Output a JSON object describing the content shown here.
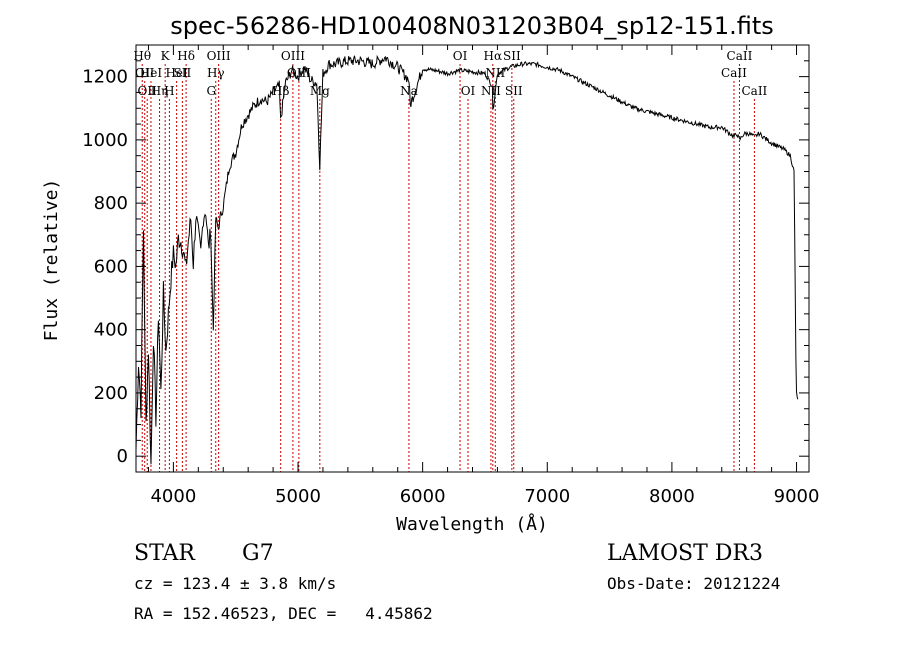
{
  "chart_data": {
    "type": "line",
    "title": "spec-56286-HD100408N031203B04_sp12-151.fits",
    "xlabel": "Wavelength (Å)",
    "ylabel": "Flux (relative)",
    "xlim": [
      3700,
      9100
    ],
    "ylim": [
      -50,
      1300
    ],
    "x_ticks": [
      4000,
      5000,
      6000,
      7000,
      8000,
      9000
    ],
    "y_ticks": [
      0,
      200,
      400,
      600,
      800,
      1000,
      1200
    ],
    "grid": false,
    "series": [
      {
        "name": "flux",
        "x": [
          3700,
          3720,
          3740,
          3760,
          3780,
          3800,
          3820,
          3840,
          3860,
          3880,
          3900,
          3920,
          3940,
          3960,
          3980,
          4000,
          4020,
          4040,
          4060,
          4080,
          4100,
          4120,
          4140,
          4160,
          4180,
          4200,
          4220,
          4240,
          4260,
          4280,
          4300,
          4320,
          4340,
          4360,
          4380,
          4400,
          4450,
          4500,
          4550,
          4600,
          4650,
          4700,
          4750,
          4800,
          4850,
          4860,
          4900,
          4950,
          5000,
          5050,
          5100,
          5150,
          5175,
          5200,
          5250,
          5300,
          5400,
          5500,
          5600,
          5700,
          5800,
          5890,
          5900,
          6000,
          6100,
          6200,
          6300,
          6400,
          6500,
          6560,
          6563,
          6600,
          6700,
          6800,
          6900,
          7000,
          7100,
          7200,
          7300,
          7400,
          7500,
          7600,
          7700,
          7800,
          7900,
          8000,
          8100,
          8200,
          8300,
          8400,
          8498,
          8520,
          8542,
          8580,
          8620,
          8662,
          8700,
          8800,
          8900,
          8950,
          8980,
          8995,
          9000,
          9010
        ],
        "values": [
          20,
          300,
          150,
          720,
          100,
          340,
          -30,
          380,
          120,
          450,
          200,
          520,
          330,
          450,
          560,
          640,
          600,
          690,
          680,
          650,
          590,
          680,
          750,
          610,
          760,
          700,
          640,
          760,
          780,
          660,
          700,
          400,
          750,
          720,
          760,
          790,
          920,
          960,
          1050,
          1080,
          1110,
          1130,
          1120,
          1150,
          1170,
          1060,
          1180,
          1220,
          1200,
          1230,
          1190,
          1180,
          920,
          1210,
          1240,
          1240,
          1250,
          1250,
          1240,
          1260,
          1230,
          1190,
          1110,
          1225,
          1220,
          1210,
          1220,
          1215,
          1210,
          1170,
          1090,
          1210,
          1230,
          1240,
          1240,
          1230,
          1220,
          1200,
          1180,
          1160,
          1140,
          1120,
          1100,
          1090,
          1080,
          1070,
          1060,
          1050,
          1040,
          1040,
          1010,
          1020,
          1000,
          1020,
          1020,
          1010,
          1020,
          990,
          970,
          950,
          900,
          300,
          200,
          180
        ]
      }
    ],
    "lines": [
      {
        "wave": 3750,
        "label": "Hθ",
        "row": 1
      },
      {
        "wave": 3770,
        "label": "OII",
        "row": 2
      },
      {
        "wave": 3790,
        "label": "OII",
        "row": 3
      },
      {
        "wave": 3820,
        "label": "HeI",
        "row": 2
      },
      {
        "wave": 3889,
        "label": "Hη",
        "row": 3
      },
      {
        "wave": 3934,
        "label": "K",
        "row": 1
      },
      {
        "wave": 3968,
        "label": "H",
        "row": 3
      },
      {
        "wave": 4026,
        "label": "HeI",
        "row": 2
      },
      {
        "wave": 4072,
        "label": "SII",
        "row": 2
      },
      {
        "wave": 4102,
        "label": "Hδ",
        "row": 1
      },
      {
        "wave": 4304,
        "label": "G",
        "row": 3
      },
      {
        "wave": 4340,
        "label": "Hγ",
        "row": 2
      },
      {
        "wave": 4363,
        "label": "OIII",
        "row": 1
      },
      {
        "wave": 4861,
        "label": "Hβ",
        "row": 3
      },
      {
        "wave": 4959,
        "label": "OIII",
        "row": 1
      },
      {
        "wave": 5007,
        "label": "OIII",
        "row": 2
      },
      {
        "wave": 5175,
        "label": "Mg",
        "row": 3
      },
      {
        "wave": 5890,
        "label": "Na",
        "row": 3
      },
      {
        "wave": 6300,
        "label": "OI",
        "row": 1
      },
      {
        "wave": 6364,
        "label": "OI",
        "row": 3
      },
      {
        "wave": 6548,
        "label": "NII",
        "row": 3
      },
      {
        "wave": 6563,
        "label": "Hα",
        "row": 1
      },
      {
        "wave": 6583,
        "label": "NII",
        "row": 2
      },
      {
        "wave": 6716,
        "label": "SII",
        "row": 1
      },
      {
        "wave": 6731,
        "label": "SII",
        "row": 3
      },
      {
        "wave": 8498,
        "label": "CaII",
        "row": 2
      },
      {
        "wave": 8542,
        "label": "CaII",
        "row": 1
      },
      {
        "wave": 8662,
        "label": "CaII",
        "row": 3
      }
    ]
  },
  "info": {
    "object_class": "STAR",
    "subclass": "G7",
    "survey": "LAMOST DR3",
    "cz": "cz = 123.4 ± 3.8 km/s",
    "obs_date": "Obs-Date: 20121224",
    "coords": "RA = 152.46523, DEC =   4.45862"
  },
  "colors": {
    "line": "#000000",
    "marker": "#cc0000",
    "background": "#ffffff"
  }
}
